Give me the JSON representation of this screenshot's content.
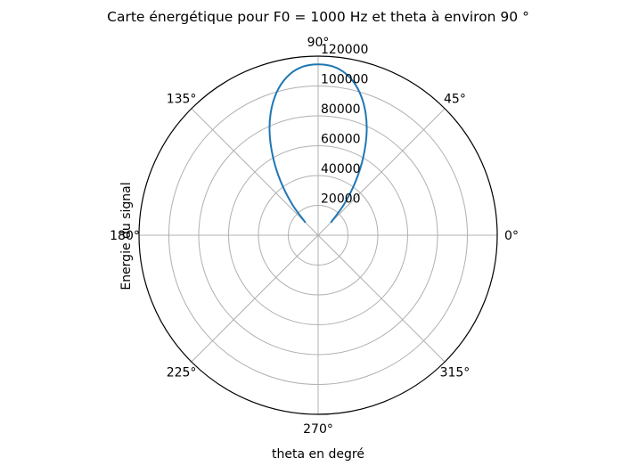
{
  "chart_data": {
    "type": "line",
    "projection": "polar",
    "title": "Carte énergétique pour F0 = 1000 Hz et theta à environ 90 °",
    "xlabel": "theta en degré",
    "ylabel": "Energie du signal",
    "theta_ticks": [
      {
        "deg": 0,
        "label": "0°"
      },
      {
        "deg": 45,
        "label": "45°"
      },
      {
        "deg": 90,
        "label": "90°"
      },
      {
        "deg": 135,
        "label": "135°"
      },
      {
        "deg": 180,
        "label": "180°"
      },
      {
        "deg": 225,
        "label": "225°"
      },
      {
        "deg": 270,
        "label": "270°"
      },
      {
        "deg": 315,
        "label": "315°"
      }
    ],
    "r_ticks": [
      20000,
      40000,
      60000,
      80000,
      100000,
      120000
    ],
    "r_tick_labels": [
      "20000",
      "40000",
      "60000",
      "80000",
      "100000",
      "120000"
    ],
    "rlim": [
      0,
      120000
    ],
    "grid": true,
    "series": [
      {
        "color": "#1f77b4",
        "theta_deg": [
          45,
          50,
          55,
          60,
          65,
          70,
          75,
          80,
          85,
          90,
          95,
          100,
          105,
          110,
          115,
          120,
          125,
          130,
          135
        ],
        "r": [
          12000,
          27000,
          43500,
          60500,
          77000,
          91000,
          102000,
          109500,
          113500,
          114500,
          113500,
          109500,
          102000,
          91000,
          77000,
          60500,
          43500,
          27000,
          12000
        ]
      }
    ]
  }
}
